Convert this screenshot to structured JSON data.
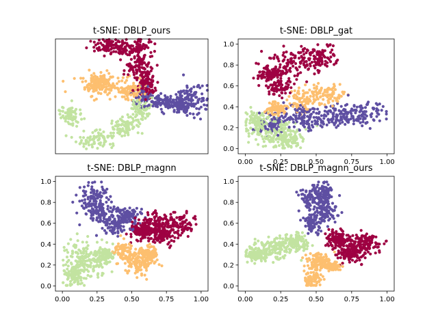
{
  "figure": {
    "background": "#ffffff"
  },
  "cluster_colors": {
    "red": "#9e0142",
    "orange": "#fdbf6f",
    "green": "#c2e3a0",
    "purple": "#5e4fa2"
  },
  "chart_data": [
    {
      "type": "scatter",
      "title": "t-SNE: DBLP_ours",
      "show_ticks": false,
      "xlim": [
        0,
        1
      ],
      "ylim": [
        0,
        1
      ],
      "clusters": [
        {
          "color": "red",
          "n": 380,
          "blobs": [
            [
              0.36,
              0.93,
              0.06,
              0.035
            ],
            [
              0.54,
              0.92,
              0.05,
              0.04
            ],
            [
              0.55,
              0.76,
              0.05,
              0.07
            ],
            [
              0.6,
              0.6,
              0.03,
              0.05
            ]
          ]
        },
        {
          "color": "orange",
          "n": 300,
          "blobs": [
            [
              0.32,
              0.61,
              0.09,
              0.06
            ],
            [
              0.27,
              0.62,
              0.03,
              0.04
            ],
            [
              0.5,
              0.55,
              0.05,
              0.04
            ]
          ]
        },
        {
          "color": "purple",
          "n": 340,
          "blobs": [
            [
              0.9,
              0.47,
              0.06,
              0.08
            ],
            [
              0.7,
              0.45,
              0.05,
              0.03
            ],
            [
              0.58,
              0.49,
              0.04,
              0.05
            ],
            [
              0.82,
              0.42,
              0.03,
              0.03
            ]
          ]
        },
        {
          "color": "green",
          "n": 300,
          "blobs": [
            [
              0.1,
              0.34,
              0.04,
              0.04
            ],
            [
              0.28,
              0.12,
              0.08,
              0.04
            ],
            [
              0.45,
              0.24,
              0.06,
              0.04
            ],
            [
              0.56,
              0.4,
              0.03,
              0.05
            ]
          ]
        }
      ]
    },
    {
      "type": "scatter",
      "title": "t-SNE: DBLP_gat",
      "show_ticks": true,
      "xlim": [
        -0.05,
        1.05
      ],
      "ylim": [
        -0.05,
        1.05
      ],
      "xticks": [
        "0.00",
        "0.25",
        "0.50",
        "0.75",
        "1.00"
      ],
      "yticks": [
        "0.0",
        "0.2",
        "0.4",
        "0.6",
        "0.8",
        "1.0"
      ],
      "clusters": [
        {
          "color": "red",
          "n": 380,
          "blobs": [
            [
              0.33,
              0.8,
              0.1,
              0.07
            ],
            [
              0.5,
              0.88,
              0.07,
              0.06
            ],
            [
              0.18,
              0.72,
              0.05,
              0.04
            ],
            [
              0.25,
              0.58,
              0.05,
              0.04
            ]
          ]
        },
        {
          "color": "orange",
          "n": 260,
          "blobs": [
            [
              0.58,
              0.52,
              0.06,
              0.05
            ],
            [
              0.4,
              0.45,
              0.05,
              0.05
            ],
            [
              0.22,
              0.38,
              0.05,
              0.03
            ]
          ]
        },
        {
          "color": "purple",
          "n": 380,
          "blobs": [
            [
              0.83,
              0.34,
              0.08,
              0.06
            ],
            [
              0.62,
              0.3,
              0.08,
              0.06
            ],
            [
              0.4,
              0.3,
              0.06,
              0.06
            ],
            [
              0.2,
              0.25,
              0.05,
              0.05
            ]
          ]
        },
        {
          "color": "green",
          "n": 300,
          "blobs": [
            [
              0.2,
              0.15,
              0.08,
              0.07
            ],
            [
              0.3,
              0.08,
              0.06,
              0.04
            ],
            [
              0.08,
              0.25,
              0.04,
              0.05
            ]
          ]
        }
      ]
    },
    {
      "type": "scatter",
      "title": "t-SNE: DBLP_magnn",
      "show_ticks": true,
      "xlim": [
        -0.05,
        1.05
      ],
      "ylim": [
        -0.05,
        1.05
      ],
      "xticks": [
        "0.00",
        "0.25",
        "0.50",
        "0.75",
        "1.00"
      ],
      "yticks": [
        "0.0",
        "0.2",
        "0.4",
        "0.6",
        "0.8",
        "1.0"
      ],
      "clusters": [
        {
          "color": "purple",
          "n": 380,
          "blobs": [
            [
              0.22,
              0.85,
              0.06,
              0.07
            ],
            [
              0.27,
              0.7,
              0.05,
              0.06
            ],
            [
              0.37,
              0.58,
              0.05,
              0.05
            ],
            [
              0.47,
              0.67,
              0.05,
              0.04
            ]
          ]
        },
        {
          "color": "red",
          "n": 420,
          "blobs": [
            [
              0.85,
              0.6,
              0.07,
              0.05
            ],
            [
              0.67,
              0.6,
              0.06,
              0.05
            ],
            [
              0.57,
              0.53,
              0.04,
              0.04
            ],
            [
              0.72,
              0.48,
              0.05,
              0.04
            ]
          ]
        },
        {
          "color": "orange",
          "n": 300,
          "blobs": [
            [
              0.55,
              0.22,
              0.06,
              0.06
            ],
            [
              0.62,
              0.3,
              0.04,
              0.04
            ],
            [
              0.45,
              0.33,
              0.04,
              0.05
            ]
          ]
        },
        {
          "color": "green",
          "n": 340,
          "blobs": [
            [
              0.13,
              0.3,
              0.06,
              0.08
            ],
            [
              0.08,
              0.1,
              0.04,
              0.05
            ],
            [
              0.22,
              0.2,
              0.05,
              0.06
            ],
            [
              0.32,
              0.3,
              0.03,
              0.04
            ]
          ]
        }
      ]
    },
    {
      "type": "scatter",
      "title": "t-SNE: DBLP_magnn_ours",
      "show_ticks": true,
      "xlim": [
        -0.05,
        1.05
      ],
      "ylim": [
        -0.05,
        1.05
      ],
      "xticks": [
        "0.00",
        "0.25",
        "0.50",
        "0.75",
        "1.00"
      ],
      "yticks": [
        "0.0",
        "0.2",
        "0.4",
        "0.6",
        "0.8",
        "1.0"
      ],
      "clusters": [
        {
          "color": "purple",
          "n": 340,
          "blobs": [
            [
              0.48,
              0.85,
              0.05,
              0.07
            ],
            [
              0.58,
              0.7,
              0.04,
              0.06
            ],
            [
              0.47,
              0.6,
              0.03,
              0.05
            ],
            [
              0.55,
              0.88,
              0.03,
              0.05
            ]
          ]
        },
        {
          "color": "red",
          "n": 380,
          "blobs": [
            [
              0.85,
              0.4,
              0.06,
              0.05
            ],
            [
              0.73,
              0.33,
              0.05,
              0.05
            ],
            [
              0.65,
              0.45,
              0.04,
              0.04
            ]
          ]
        },
        {
          "color": "green",
          "n": 340,
          "blobs": [
            [
              0.2,
              0.36,
              0.07,
              0.05
            ],
            [
              0.08,
              0.3,
              0.04,
              0.03
            ],
            [
              0.35,
              0.42,
              0.05,
              0.04
            ]
          ]
        },
        {
          "color": "orange",
          "n": 260,
          "blobs": [
            [
              0.48,
              0.1,
              0.04,
              0.06
            ],
            [
              0.52,
              0.25,
              0.04,
              0.04
            ],
            [
              0.6,
              0.2,
              0.04,
              0.03
            ]
          ]
        }
      ]
    }
  ]
}
